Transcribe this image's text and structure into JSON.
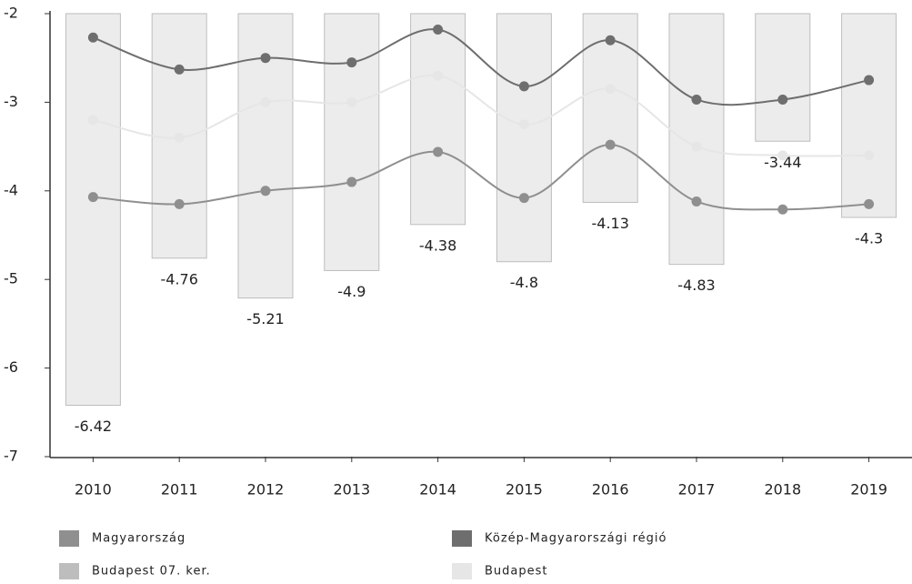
{
  "chart_data": {
    "type": "combo",
    "categories": [
      "2010",
      "2011",
      "2012",
      "2013",
      "2014",
      "2015",
      "2016",
      "2017",
      "2018",
      "2019"
    ],
    "ylim": [
      -7,
      -2
    ],
    "yticks": [
      -7,
      -6,
      -5,
      -4,
      -3,
      -2
    ],
    "series": [
      {
        "name": "Magyarország",
        "type": "line",
        "color": "#8f8f8f",
        "values": [
          -4.07,
          -4.15,
          -4.0,
          -3.9,
          -3.56,
          -4.08,
          -3.48,
          -4.12,
          -4.21,
          -4.15
        ]
      },
      {
        "name": "Közép-Magyarországi régió",
        "type": "line",
        "color": "#6e6e6e",
        "values": [
          -2.27,
          -2.63,
          -2.5,
          -2.55,
          -2.18,
          -2.82,
          -2.3,
          -2.97,
          -2.97,
          -2.75
        ]
      },
      {
        "name": "Budapest 07. ker.",
        "type": "bar",
        "color": "#bdbdbd",
        "values": [
          -6.42,
          -4.76,
          -5.21,
          -4.9,
          -4.38,
          -4.8,
          -4.13,
          -4.83,
          -3.44,
          -4.3
        ]
      },
      {
        "name": "Budapest",
        "type": "line",
        "color": "#e6e6e6",
        "values": [
          -3.2,
          -3.4,
          -3.0,
          -3.0,
          -2.7,
          -3.25,
          -2.85,
          -3.5,
          -3.6,
          -3.6
        ]
      }
    ]
  }
}
